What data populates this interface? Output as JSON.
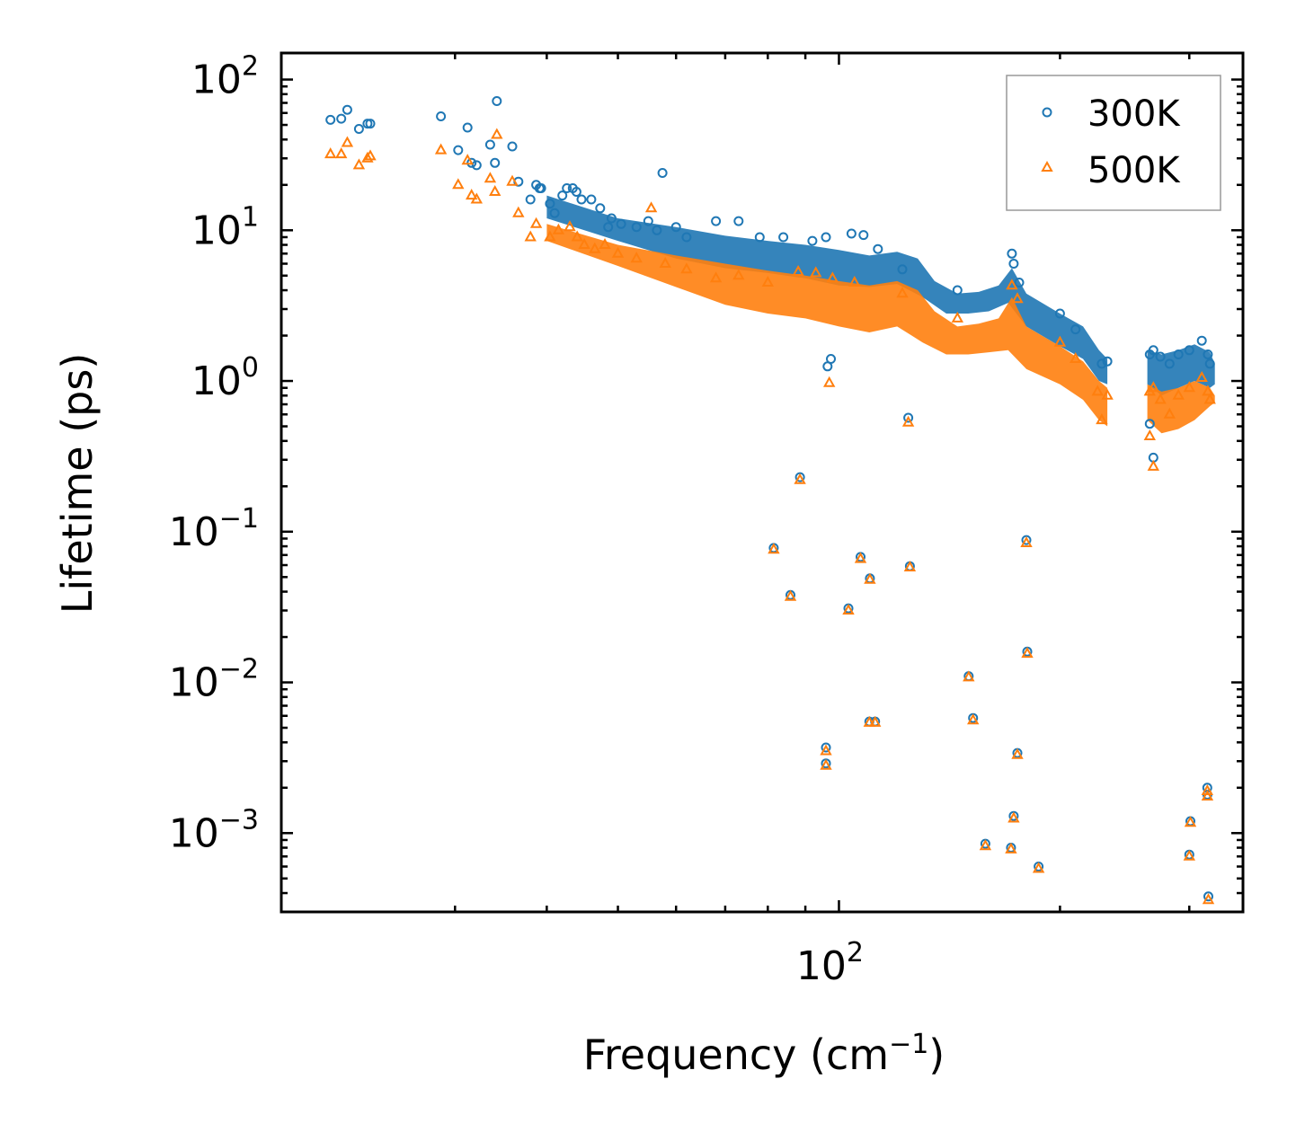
{
  "chart_data": {
    "type": "scatter",
    "title": "",
    "xlabel": "Frequency (cm",
    "xlabel_sup": "−1",
    "xlabel_tail": ")",
    "ylabel": "Lifetime (ps)",
    "xscale": "log",
    "yscale": "log",
    "xlim": [
      17.4,
      355
    ],
    "ylim": [
      0.0003,
      150
    ],
    "x_major_ticks": [
      {
        "value": 100,
        "base": "10",
        "exp": "2"
      }
    ],
    "x_minor_ticks": [
      30,
      40,
      50,
      60,
      70,
      80,
      90,
      200,
      300
    ],
    "y_major_ticks": [
      {
        "value": 0.001,
        "base": "10",
        "exp": "−3"
      },
      {
        "value": 0.01,
        "base": "10",
        "exp": "−2"
      },
      {
        "value": 0.1,
        "base": "10",
        "exp": "−1"
      },
      {
        "value": 1,
        "base": "10",
        "exp": "0"
      },
      {
        "value": 10,
        "base": "10",
        "exp": "1"
      },
      {
        "value": 100,
        "base": "10",
        "exp": "2"
      }
    ],
    "legend_position": "top-right",
    "series": [
      {
        "name": "300K",
        "marker": "circle",
        "color": "#1f77b4",
        "points": [
          [
            20.3,
            54
          ],
          [
            21.0,
            55
          ],
          [
            21.4,
            63
          ],
          [
            22.2,
            47
          ],
          [
            22.8,
            51
          ],
          [
            23.0,
            51
          ],
          [
            28.7,
            57
          ],
          [
            30.3,
            34
          ],
          [
            31.2,
            48
          ],
          [
            31.6,
            28
          ],
          [
            32.1,
            27
          ],
          [
            33.5,
            37
          ],
          [
            34.0,
            28
          ],
          [
            34.2,
            72
          ],
          [
            35.9,
            36
          ],
          [
            36.6,
            21
          ],
          [
            38.0,
            16
          ],
          [
            38.7,
            20
          ],
          [
            39.1,
            19
          ],
          [
            39.3,
            19
          ],
          [
            40.4,
            15
          ],
          [
            41.0,
            13
          ],
          [
            42.0,
            17
          ],
          [
            42.6,
            19
          ],
          [
            43.4,
            19
          ],
          [
            43.9,
            18
          ],
          [
            44.6,
            16
          ],
          [
            46.0,
            16
          ],
          [
            47.3,
            14
          ],
          [
            48.5,
            10.5
          ],
          [
            49.0,
            12
          ],
          [
            50.5,
            11
          ],
          [
            53.0,
            10.5
          ],
          [
            55.0,
            11.5
          ],
          [
            56.5,
            10
          ],
          [
            57.5,
            24
          ],
          [
            60.0,
            10.5
          ],
          [
            62.0,
            9
          ],
          [
            68.0,
            11.5
          ],
          [
            73.0,
            11.5
          ],
          [
            78.0,
            9
          ],
          [
            84.0,
            9
          ],
          [
            92.0,
            8.5
          ],
          [
            96.0,
            9
          ],
          [
            104.0,
            9.5
          ],
          [
            108.0,
            9.3
          ],
          [
            113.0,
            7.5
          ],
          [
            96.5,
            1.25
          ],
          [
            97.5,
            1.4
          ],
          [
            122.0,
            5.5
          ],
          [
            145.0,
            4.0
          ],
          [
            172.0,
            7.0
          ],
          [
            173.0,
            6.0
          ],
          [
            176.0,
            4.5
          ],
          [
            200.0,
            2.8
          ],
          [
            210.0,
            2.2
          ],
          [
            228.0,
            1.3
          ],
          [
            232.0,
            1.35
          ],
          [
            265.0,
            1.5
          ],
          [
            268.0,
            1.6
          ],
          [
            274.0,
            1.45
          ],
          [
            282.0,
            1.3
          ],
          [
            290.0,
            1.5
          ],
          [
            300.0,
            1.6
          ],
          [
            312.0,
            1.85
          ],
          [
            318.0,
            1.5
          ],
          [
            320.0,
            1.3
          ],
          [
            265.0,
            0.52
          ],
          [
            268.0,
            0.31
          ],
          [
            124.3,
            0.57
          ],
          [
            88.5,
            0.23
          ],
          [
            81.5,
            0.078
          ],
          [
            85.9,
            0.038
          ],
          [
            107.0,
            0.068
          ],
          [
            103.0,
            0.031
          ],
          [
            110.2,
            0.049
          ],
          [
            124.9,
            0.059
          ],
          [
            180.0,
            0.088
          ],
          [
            180.5,
            0.016
          ],
          [
            150.2,
            0.011
          ],
          [
            152.3,
            0.0058
          ],
          [
            175.0,
            0.0034
          ],
          [
            112.0,
            0.0055
          ],
          [
            110.0,
            0.0055
          ],
          [
            96.0,
            0.0037
          ],
          [
            96.0,
            0.0029
          ],
          [
            173.0,
            0.0013
          ],
          [
            158.3,
            0.00085
          ],
          [
            171.5,
            0.0008
          ],
          [
            187.0,
            0.0006
          ],
          [
            301.0,
            0.0012
          ],
          [
            300.0,
            0.00072
          ],
          [
            317.4,
            0.002
          ],
          [
            317.5,
            0.0018
          ],
          [
            318.5,
            0.00038
          ]
        ]
      },
      {
        "name": "500K",
        "marker": "triangle",
        "color": "#ff7f0e",
        "points": [
          [
            20.3,
            32
          ],
          [
            21.0,
            32
          ],
          [
            21.4,
            38
          ],
          [
            22.2,
            27
          ],
          [
            22.8,
            30
          ],
          [
            23.0,
            31
          ],
          [
            28.7,
            34
          ],
          [
            30.3,
            20
          ],
          [
            31.2,
            29
          ],
          [
            31.6,
            17
          ],
          [
            32.1,
            16
          ],
          [
            33.5,
            22
          ],
          [
            34.0,
            18
          ],
          [
            34.2,
            43
          ],
          [
            35.9,
            21
          ],
          [
            36.6,
            13
          ],
          [
            38.0,
            9
          ],
          [
            38.7,
            11
          ],
          [
            40.4,
            9
          ],
          [
            41.5,
            10
          ],
          [
            43.0,
            10.5
          ],
          [
            44.0,
            9
          ],
          [
            45.0,
            8
          ],
          [
            46.5,
            7.5
          ],
          [
            48.0,
            8
          ],
          [
            50.0,
            7
          ],
          [
            53.0,
            6.5
          ],
          [
            55.5,
            14
          ],
          [
            58.0,
            6
          ],
          [
            62.0,
            5.5
          ],
          [
            68.0,
            4.8
          ],
          [
            73.0,
            5
          ],
          [
            80.0,
            4.5
          ],
          [
            88.0,
            5.3
          ],
          [
            93.0,
            5.2
          ],
          [
            98.0,
            4.8
          ],
          [
            105.0,
            4.5
          ],
          [
            97.0,
            0.97
          ],
          [
            122.0,
            3.8
          ],
          [
            145.0,
            2.6
          ],
          [
            172.0,
            4.3
          ],
          [
            175.0,
            3.5
          ],
          [
            200.0,
            1.8
          ],
          [
            210.0,
            1.4
          ],
          [
            225.0,
            0.85
          ],
          [
            228.0,
            0.55
          ],
          [
            232.0,
            0.8
          ],
          [
            265.0,
            0.85
          ],
          [
            268.0,
            0.9
          ],
          [
            274.0,
            0.75
          ],
          [
            282.0,
            0.6
          ],
          [
            290.0,
            0.8
          ],
          [
            300.0,
            0.9
          ],
          [
            312.0,
            1.05
          ],
          [
            318.0,
            0.85
          ],
          [
            320.0,
            0.75
          ],
          [
            265.0,
            0.43
          ],
          [
            268.0,
            0.27
          ],
          [
            124.3,
            0.53
          ],
          [
            88.5,
            0.22
          ],
          [
            81.5,
            0.076
          ],
          [
            85.9,
            0.037
          ],
          [
            107.0,
            0.066
          ],
          [
            103.0,
            0.03
          ],
          [
            110.2,
            0.048
          ],
          [
            124.9,
            0.058
          ],
          [
            180.0,
            0.084
          ],
          [
            180.5,
            0.0155
          ],
          [
            150.2,
            0.0108
          ],
          [
            152.3,
            0.0056
          ],
          [
            175.0,
            0.0033
          ],
          [
            112.0,
            0.0054
          ],
          [
            110.0,
            0.0054
          ],
          [
            96.0,
            0.0035
          ],
          [
            96.0,
            0.0028
          ],
          [
            173.0,
            0.00125
          ],
          [
            158.3,
            0.00082
          ],
          [
            171.5,
            0.00078
          ],
          [
            187.0,
            0.00058
          ],
          [
            301.0,
            0.00117
          ],
          [
            300.0,
            0.0007
          ],
          [
            317.4,
            0.0019
          ],
          [
            317.5,
            0.00175
          ],
          [
            318.5,
            0.00036
          ]
        ]
      }
    ],
    "dense_bands": [
      {
        "series": "300K",
        "color": "#1f77b4",
        "upper": [
          [
            40,
            17
          ],
          [
            50,
            12
          ],
          [
            60,
            10.5
          ],
          [
            70,
            9.2
          ],
          [
            80,
            8.5
          ],
          [
            90,
            8
          ],
          [
            100,
            7.4
          ],
          [
            110,
            6.8
          ],
          [
            120,
            7.2
          ],
          [
            128,
            6.5
          ],
          [
            135,
            4.6
          ],
          [
            145,
            3.8
          ],
          [
            155,
            3.9
          ],
          [
            165,
            4.3
          ],
          [
            172,
            5.6
          ],
          [
            180,
            3.8
          ],
          [
            200,
            2.8
          ],
          [
            215,
            2.3
          ],
          [
            226,
            1.6
          ],
          [
            232,
            1.4
          ]
        ],
        "lower": [
          [
            40,
            12
          ],
          [
            50,
            8.5
          ],
          [
            60,
            6.5
          ],
          [
            70,
            5.6
          ],
          [
            80,
            5.2
          ],
          [
            90,
            4.8
          ],
          [
            100,
            4.3
          ],
          [
            110,
            4.2
          ],
          [
            120,
            4.4
          ],
          [
            130,
            3.6
          ],
          [
            140,
            2.8
          ],
          [
            150,
            2.8
          ],
          [
            160,
            2.9
          ],
          [
            170,
            3.3
          ],
          [
            180,
            2.3
          ],
          [
            200,
            1.7
          ],
          [
            215,
            1.4
          ],
          [
            226,
            1.0
          ],
          [
            232,
            0.95
          ]
        ]
      },
      {
        "series": "500K",
        "color": "#ff7f0e",
        "upper": [
          [
            40,
            11
          ],
          [
            50,
            8
          ],
          [
            60,
            6.8
          ],
          [
            70,
            6
          ],
          [
            80,
            5.4
          ],
          [
            90,
            5
          ],
          [
            100,
            4.6
          ],
          [
            110,
            4.3
          ],
          [
            120,
            4.6
          ],
          [
            128,
            4.0
          ],
          [
            135,
            2.9
          ],
          [
            145,
            2.3
          ],
          [
            155,
            2.4
          ],
          [
            165,
            2.6
          ],
          [
            172,
            3.6
          ],
          [
            180,
            2.3
          ],
          [
            200,
            1.7
          ],
          [
            215,
            1.35
          ],
          [
            226,
            1.0
          ],
          [
            232,
            0.9
          ]
        ],
        "lower": [
          [
            40,
            8.5
          ],
          [
            50,
            5.8
          ],
          [
            60,
            4.2
          ],
          [
            70,
            3.2
          ],
          [
            80,
            2.8
          ],
          [
            90,
            2.6
          ],
          [
            100,
            2.3
          ],
          [
            110,
            2.1
          ],
          [
            120,
            2.3
          ],
          [
            130,
            1.8
          ],
          [
            140,
            1.5
          ],
          [
            150,
            1.5
          ],
          [
            160,
            1.55
          ],
          [
            170,
            1.6
          ],
          [
            180,
            1.2
          ],
          [
            200,
            0.95
          ],
          [
            215,
            0.75
          ],
          [
            226,
            0.55
          ],
          [
            232,
            0.5
          ]
        ]
      },
      {
        "series": "300K",
        "color": "#1f77b4",
        "upper": [
          [
            263,
            1.6
          ],
          [
            275,
            1.5
          ],
          [
            290,
            1.6
          ],
          [
            305,
            1.75
          ],
          [
            320,
            1.55
          ],
          [
            325,
            1.3
          ]
        ],
        "lower": [
          [
            263,
            0.95
          ],
          [
            275,
            0.8
          ],
          [
            290,
            0.9
          ],
          [
            305,
            1.0
          ],
          [
            320,
            0.9
          ],
          [
            325,
            0.95
          ]
        ]
      },
      {
        "series": "500K",
        "color": "#ff7f0e",
        "upper": [
          [
            263,
            0.95
          ],
          [
            275,
            0.85
          ],
          [
            290,
            0.9
          ],
          [
            305,
            1.0
          ],
          [
            320,
            0.9
          ],
          [
            325,
            0.8
          ]
        ],
        "lower": [
          [
            263,
            0.55
          ],
          [
            275,
            0.45
          ],
          [
            290,
            0.48
          ],
          [
            305,
            0.55
          ],
          [
            320,
            0.68
          ],
          [
            325,
            0.72
          ]
        ]
      }
    ]
  }
}
